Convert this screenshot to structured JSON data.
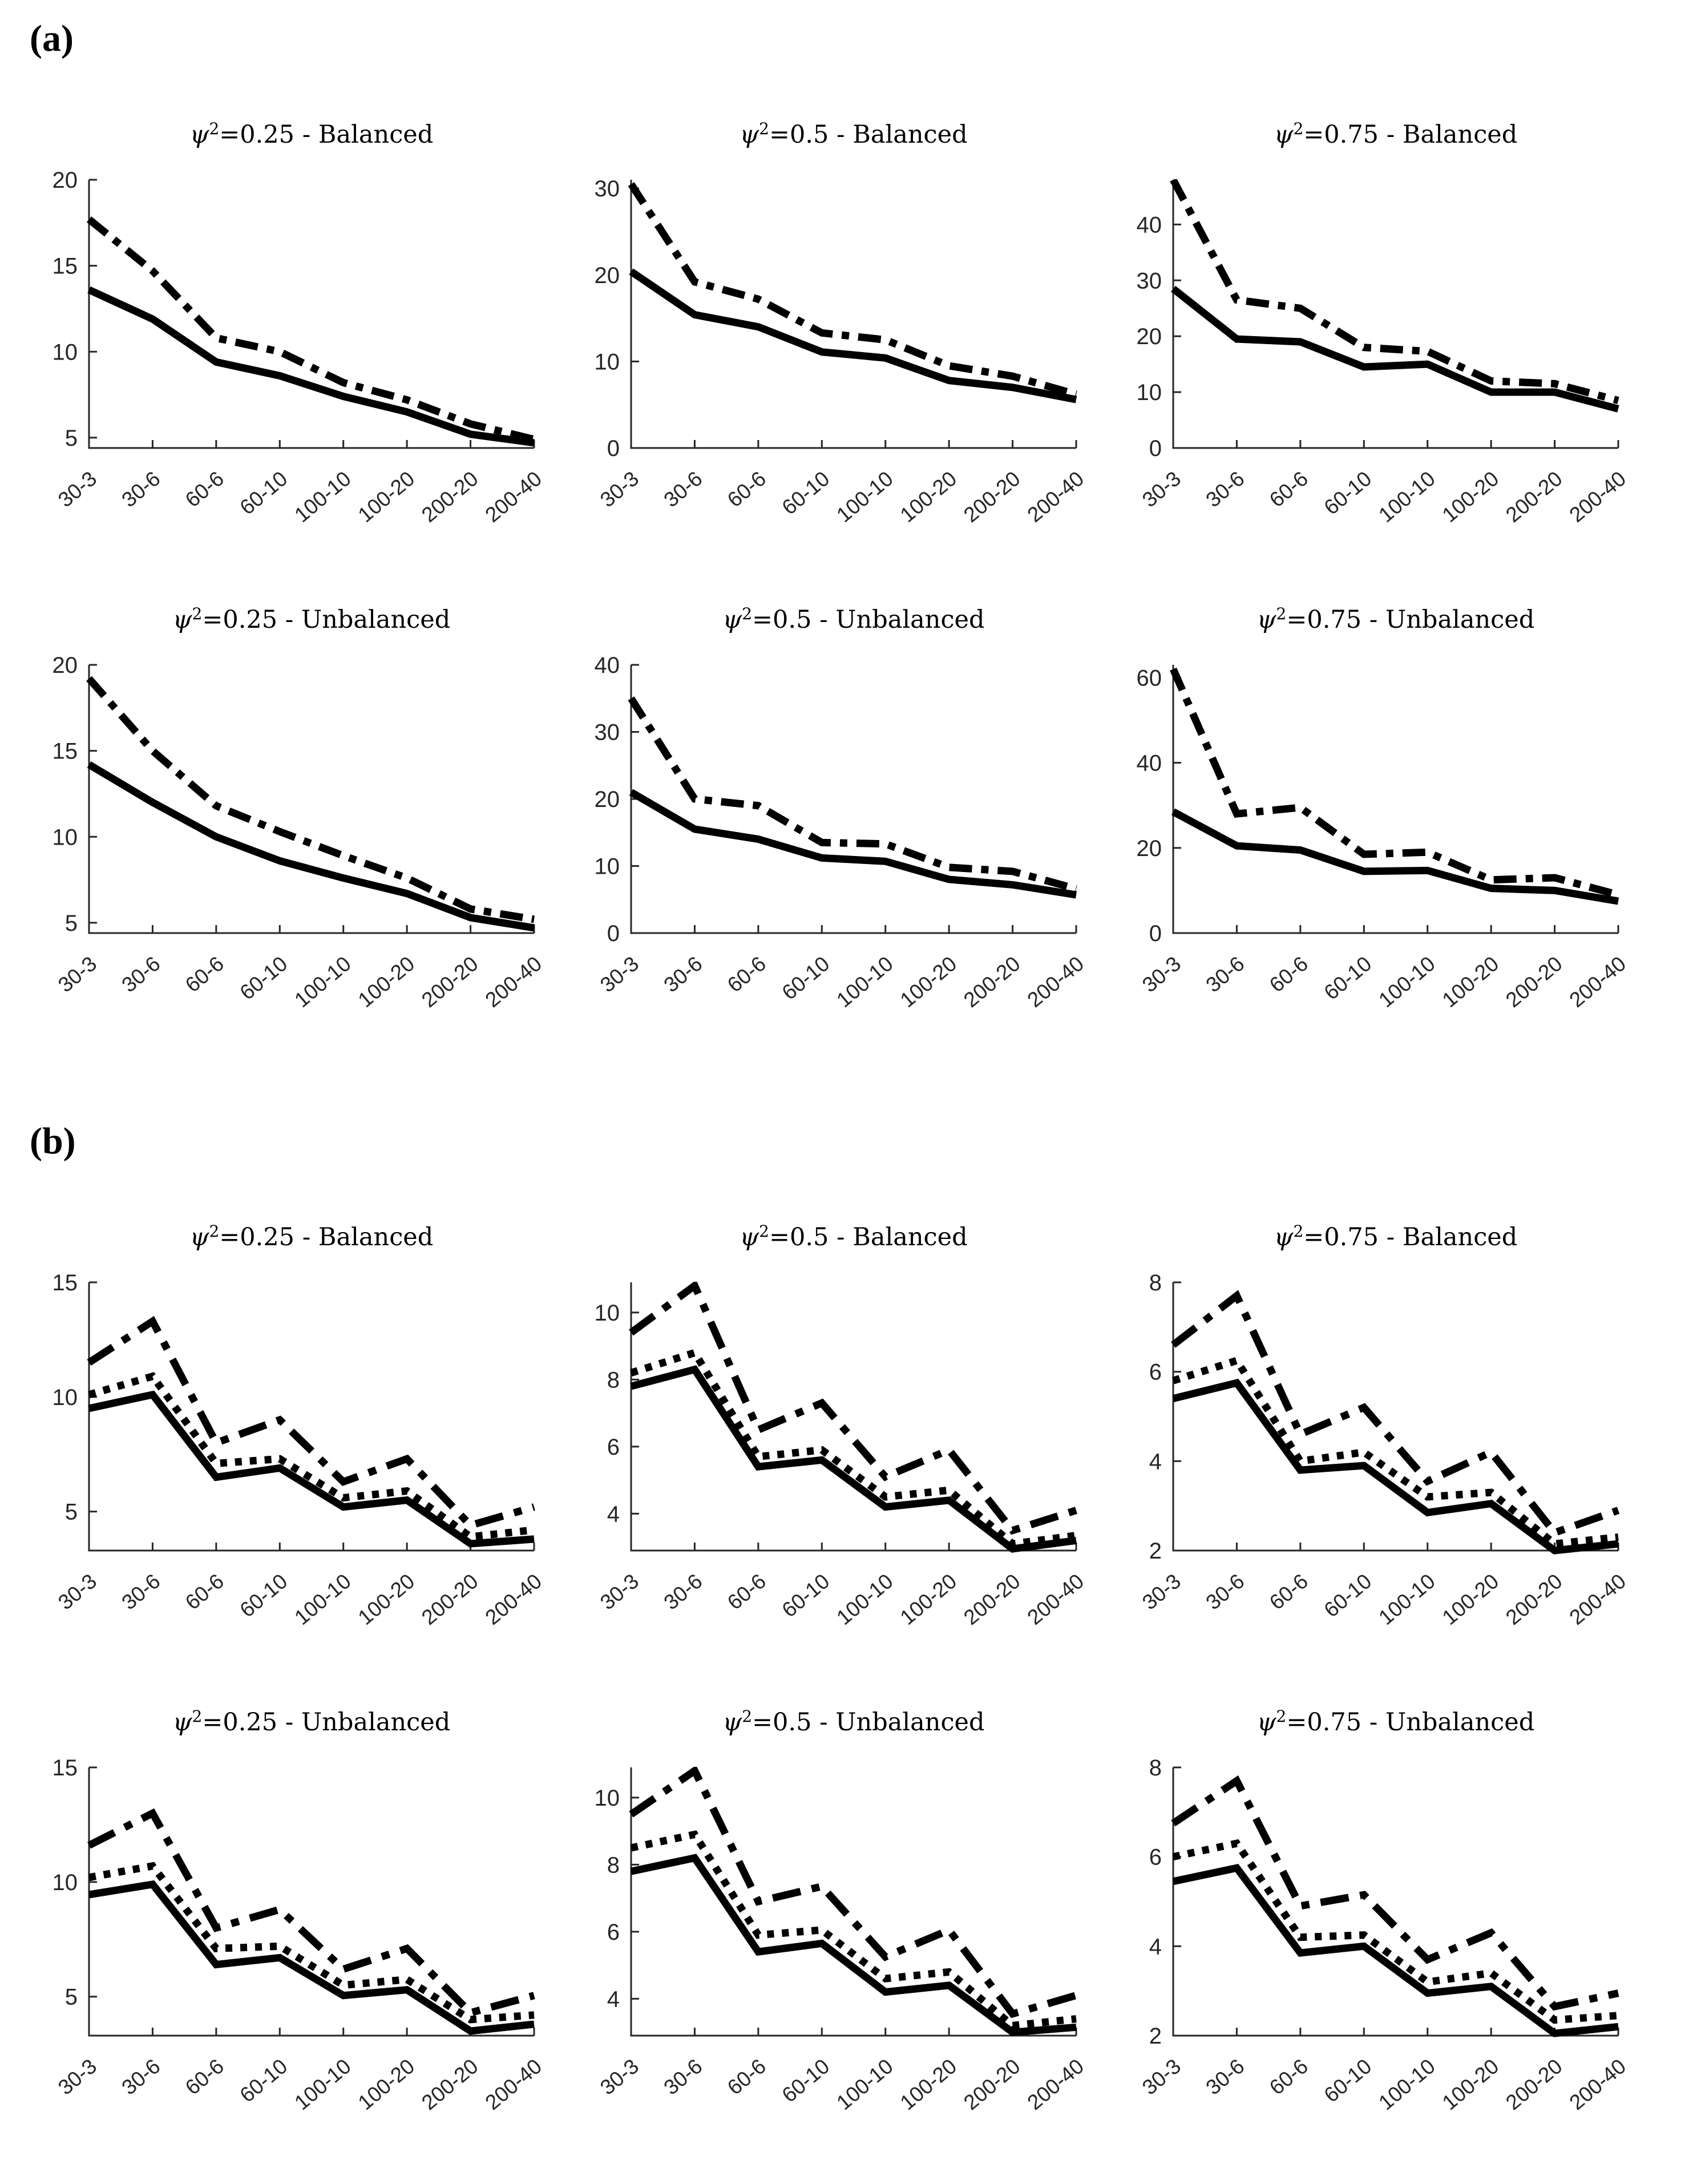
{
  "panels": [
    {
      "id": "a",
      "label": "(a)"
    },
    {
      "id": "b",
      "label": "(b)"
    }
  ],
  "chart_data": [
    {
      "panel": "a",
      "type": "line",
      "title": "ψ²=0.25 - Balanced",
      "categories": [
        "30-3",
        "30-6",
        "60-6",
        "60-10",
        "100-10",
        "100-20",
        "200-20",
        "200-40"
      ],
      "yticks": [
        5,
        10,
        15,
        20
      ],
      "ylim": [
        4.4,
        20
      ],
      "grid": false,
      "legend": "none",
      "series": [
        {
          "name": "dash-dot line",
          "style": "dashdot",
          "values": [
            17.7,
            14.7,
            10.8,
            10.0,
            8.2,
            7.2,
            5.8,
            4.9
          ]
        },
        {
          "name": "solid line",
          "style": "solid",
          "values": [
            13.6,
            11.9,
            9.4,
            8.6,
            7.4,
            6.5,
            5.2,
            4.7
          ]
        }
      ]
    },
    {
      "panel": "a",
      "type": "line",
      "title": "ψ²=0.5 - Balanced",
      "categories": [
        "30-3",
        "30-6",
        "60-6",
        "60-10",
        "100-10",
        "100-20",
        "200-20",
        "200-40"
      ],
      "yticks": [
        0,
        10,
        20,
        30
      ],
      "ylim": [
        0,
        31
      ],
      "grid": false,
      "legend": "none",
      "series": [
        {
          "name": "dash-dot line",
          "style": "dashdot",
          "values": [
            30.5,
            19.2,
            17.2,
            13.3,
            12.5,
            9.5,
            8.3,
            6.2
          ]
        },
        {
          "name": "solid line",
          "style": "solid",
          "values": [
            20.4,
            15.4,
            14.0,
            11.1,
            10.4,
            7.8,
            7.0,
            5.6
          ]
        }
      ]
    },
    {
      "panel": "a",
      "type": "line",
      "title": "ψ²=0.75 - Balanced",
      "categories": [
        "30-3",
        "30-6",
        "60-6",
        "60-10",
        "100-10",
        "100-20",
        "200-20",
        "200-40"
      ],
      "yticks": [
        0,
        10,
        20,
        30,
        40
      ],
      "ylim": [
        0,
        48
      ],
      "grid": false,
      "legend": "none",
      "series": [
        {
          "name": "dash-dot line",
          "style": "dashdot",
          "values": [
            48,
            26.5,
            25,
            18,
            17.3,
            12,
            11.5,
            8.5
          ]
        },
        {
          "name": "solid line",
          "style": "solid",
          "values": [
            28.5,
            19.5,
            19,
            14.5,
            15,
            10,
            10,
            7
          ]
        }
      ]
    },
    {
      "panel": "a",
      "type": "line",
      "title": "ψ²=0.25 - Unbalanced",
      "categories": [
        "30-3",
        "30-6",
        "60-6",
        "60-10",
        "100-10",
        "100-20",
        "200-20",
        "200-40"
      ],
      "yticks": [
        5,
        10,
        15,
        20
      ],
      "ylim": [
        4.4,
        20
      ],
      "grid": false,
      "legend": "none",
      "series": [
        {
          "name": "dash-dot line",
          "style": "dashdot",
          "values": [
            19.2,
            15,
            11.8,
            10.3,
            8.9,
            7.6,
            5.8,
            5.2
          ]
        },
        {
          "name": "solid line",
          "style": "solid",
          "values": [
            14.2,
            12,
            10,
            8.6,
            7.6,
            6.7,
            5.3,
            4.7
          ]
        }
      ]
    },
    {
      "panel": "a",
      "type": "line",
      "title": "ψ²=0.5 - Unbalanced",
      "categories": [
        "30-3",
        "30-6",
        "60-6",
        "60-10",
        "100-10",
        "100-20",
        "200-20",
        "200-40"
      ],
      "yticks": [
        0,
        10,
        20,
        30,
        40
      ],
      "ylim": [
        0,
        40
      ],
      "grid": false,
      "legend": "none",
      "series": [
        {
          "name": "dash-dot line",
          "style": "dashdot",
          "values": [
            35,
            20,
            19,
            13.5,
            13.3,
            9.8,
            9.2,
            6.6
          ]
        },
        {
          "name": "solid line",
          "style": "solid",
          "values": [
            21,
            15.5,
            14,
            11.2,
            10.7,
            8.0,
            7.2,
            5.7
          ]
        }
      ]
    },
    {
      "panel": "a",
      "type": "line",
      "title": "ψ²=0.75 - Unbalanced",
      "categories": [
        "30-3",
        "30-6",
        "60-6",
        "60-10",
        "100-10",
        "100-20",
        "200-20",
        "200-40"
      ],
      "yticks": [
        0,
        20,
        40,
        60
      ],
      "ylim": [
        0,
        63
      ],
      "grid": false,
      "legend": "none",
      "series": [
        {
          "name": "dash-dot line",
          "style": "dashdot",
          "values": [
            62,
            28,
            29.5,
            18.5,
            19,
            12.5,
            13,
            9
          ]
        },
        {
          "name": "solid line",
          "style": "solid",
          "values": [
            28.5,
            20.5,
            19.5,
            14.5,
            14.7,
            10.5,
            10,
            7.5
          ]
        }
      ]
    },
    {
      "panel": "b",
      "type": "line",
      "title": "ψ²=0.25 - Balanced",
      "categories": [
        "30-3",
        "30-6",
        "60-6",
        "60-10",
        "100-10",
        "100-20",
        "200-20",
        "200-40"
      ],
      "yticks": [
        5,
        10,
        15
      ],
      "ylim": [
        3.3,
        15
      ],
      "grid": false,
      "legend": "none",
      "series": [
        {
          "name": "dash-dot line",
          "style": "dashdot-long",
          "values": [
            11.5,
            13.3,
            8.0,
            9.0,
            6.3,
            7.3,
            4.4,
            5.2
          ]
        },
        {
          "name": "dotted line",
          "style": "dotted",
          "values": [
            10.1,
            10.9,
            7.1,
            7.3,
            5.6,
            5.9,
            3.9,
            4.2
          ]
        },
        {
          "name": "solid line",
          "style": "solid",
          "values": [
            9.5,
            10.1,
            6.5,
            6.9,
            5.2,
            5.5,
            3.6,
            3.8
          ]
        }
      ]
    },
    {
      "panel": "b",
      "type": "line",
      "title": "ψ²=0.5 - Balanced",
      "categories": [
        "30-3",
        "30-6",
        "60-6",
        "60-10",
        "100-10",
        "100-20",
        "200-20",
        "200-40"
      ],
      "yticks": [
        4,
        6,
        8,
        10
      ],
      "ylim": [
        2.9,
        10.9
      ],
      "grid": false,
      "legend": "none",
      "series": [
        {
          "name": "dash-dot line",
          "style": "dashdot-long",
          "values": [
            9.4,
            10.8,
            6.5,
            7.3,
            5.1,
            5.9,
            3.5,
            4.1
          ]
        },
        {
          "name": "dotted line",
          "style": "dotted",
          "values": [
            8.2,
            8.8,
            5.7,
            5.9,
            4.5,
            4.7,
            3.1,
            3.35
          ]
        },
        {
          "name": "solid line",
          "style": "solid",
          "values": [
            7.8,
            8.3,
            5.4,
            5.6,
            4.2,
            4.4,
            2.95,
            3.2
          ]
        }
      ]
    },
    {
      "panel": "b",
      "type": "line",
      "title": "ψ²=0.75 - Balanced",
      "categories": [
        "30-3",
        "30-6",
        "60-6",
        "60-10",
        "100-10",
        "100-20",
        "200-20",
        "200-40"
      ],
      "yticks": [
        2,
        4,
        6,
        8
      ],
      "ylim": [
        2,
        8
      ],
      "grid": false,
      "legend": "none",
      "series": [
        {
          "name": "dash-dot line",
          "style": "dashdot-long",
          "values": [
            6.6,
            7.7,
            4.6,
            5.2,
            3.55,
            4.2,
            2.4,
            2.9
          ]
        },
        {
          "name": "dotted line",
          "style": "dotted",
          "values": [
            5.8,
            6.25,
            4.0,
            4.2,
            3.2,
            3.3,
            2.15,
            2.3
          ]
        },
        {
          "name": "solid line",
          "style": "solid",
          "values": [
            5.4,
            5.75,
            3.8,
            3.9,
            2.85,
            3.05,
            2.0,
            2.15
          ]
        }
      ]
    },
    {
      "panel": "b",
      "type": "line",
      "title": "ψ²=0.25 - Unbalanced",
      "categories": [
        "30-3",
        "30-6",
        "60-6",
        "60-10",
        "100-10",
        "100-20",
        "200-20",
        "200-40"
      ],
      "yticks": [
        5,
        10,
        15
      ],
      "ylim": [
        3.3,
        15
      ],
      "grid": false,
      "legend": "none",
      "series": [
        {
          "name": "dash-dot line",
          "style": "dashdot-long",
          "values": [
            11.6,
            13.0,
            8.0,
            8.8,
            6.2,
            7.1,
            4.3,
            5.05
          ]
        },
        {
          "name": "dotted line",
          "style": "dotted",
          "values": [
            10.2,
            10.7,
            7.1,
            7.2,
            5.5,
            5.75,
            4.0,
            4.2
          ]
        },
        {
          "name": "solid line",
          "style": "solid",
          "values": [
            9.45,
            9.9,
            6.4,
            6.7,
            5.05,
            5.3,
            3.5,
            3.8
          ]
        }
      ]
    },
    {
      "panel": "b",
      "type": "line",
      "title": "ψ²=0.5 - Unbalanced",
      "categories": [
        "30-3",
        "30-6",
        "60-6",
        "60-10",
        "100-10",
        "100-20",
        "200-20",
        "200-40"
      ],
      "yticks": [
        4,
        6,
        8,
        10
      ],
      "ylim": [
        2.9,
        10.9
      ],
      "grid": false,
      "legend": "none",
      "series": [
        {
          "name": "dash-dot line",
          "style": "dashdot-long",
          "values": [
            9.5,
            10.8,
            6.9,
            7.35,
            5.25,
            6.05,
            3.55,
            4.1
          ]
        },
        {
          "name": "dotted line",
          "style": "dotted",
          "values": [
            8.5,
            8.9,
            5.9,
            6.05,
            4.6,
            4.8,
            3.2,
            3.4
          ]
        },
        {
          "name": "solid line",
          "style": "solid",
          "values": [
            7.8,
            8.2,
            5.4,
            5.65,
            4.2,
            4.4,
            3.0,
            3.15
          ]
        }
      ]
    },
    {
      "panel": "b",
      "type": "line",
      "title": "ψ²=0.75 - Unbalanced",
      "categories": [
        "30-3",
        "30-6",
        "60-6",
        "60-10",
        "100-10",
        "100-20",
        "200-20",
        "200-40"
      ],
      "yticks": [
        2,
        4,
        6,
        8
      ],
      "ylim": [
        2,
        8
      ],
      "grid": false,
      "legend": "none",
      "series": [
        {
          "name": "dash-dot line",
          "style": "dashdot-long",
          "values": [
            6.75,
            7.7,
            4.9,
            5.15,
            3.7,
            4.3,
            2.65,
            2.95
          ]
        },
        {
          "name": "dotted line",
          "style": "dotted",
          "values": [
            6.0,
            6.3,
            4.2,
            4.25,
            3.2,
            3.4,
            2.35,
            2.45
          ]
        },
        {
          "name": "solid line",
          "style": "solid",
          "values": [
            5.45,
            5.75,
            3.85,
            4.0,
            2.95,
            3.1,
            2.05,
            2.2
          ]
        }
      ]
    }
  ]
}
